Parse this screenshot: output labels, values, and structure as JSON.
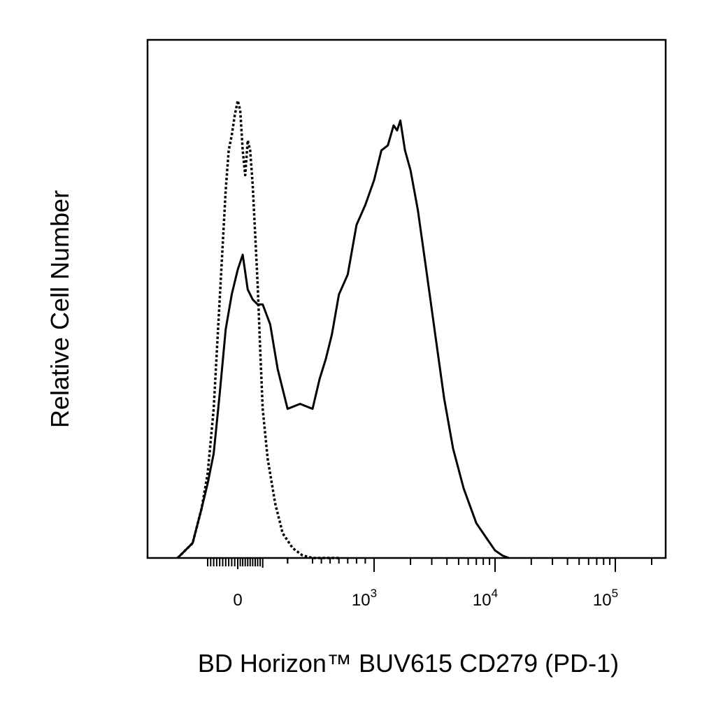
{
  "chart_data": {
    "type": "line",
    "title": "",
    "xlabel": "BD Horizon™ BUV615 CD279 (PD-1)",
    "ylabel": "Relative Cell Number",
    "x_scale": "biexponential (linear near 0, log above)",
    "xlim": [
      -300,
      200000
    ],
    "ylim": [
      0,
      100
    ],
    "grid": false,
    "legend": "none",
    "x_tick_labels": [
      {
        "value": 0,
        "base": "0",
        "exp": ""
      },
      {
        "value": 1000,
        "base": "10",
        "exp": "3"
      },
      {
        "value": 10000,
        "base": "10",
        "exp": "4"
      },
      {
        "value": 100000,
        "base": "10",
        "exp": "5"
      }
    ],
    "colors": {
      "series": "#000000",
      "frame": "#000000"
    },
    "series": [
      {
        "style": "solid",
        "x": [
          -200,
          -150,
          -120,
          -100,
          -80,
          -60,
          -40,
          -20,
          0,
          20,
          40,
          60,
          80,
          100,
          130,
          160,
          200,
          250,
          300,
          380,
          450,
          520,
          600,
          700,
          800,
          900,
          1000,
          1150,
          1300,
          1450,
          1550,
          1650,
          1800,
          2000,
          2300,
          2700,
          3200,
          3800,
          4500,
          5500,
          7000,
          8500,
          10000,
          11500,
          13000
        ],
        "y": [
          0,
          3,
          10,
          15,
          21,
          33,
          46,
          53,
          58,
          61,
          54,
          52,
          51,
          51,
          47,
          38,
          30,
          31,
          30,
          36,
          40,
          45,
          53,
          57,
          67,
          71,
          76,
          82,
          83,
          87,
          86,
          88,
          82,
          78,
          70,
          58,
          45,
          32,
          22,
          14,
          7,
          4,
          1.5,
          0.5,
          0
        ]
      },
      {
        "style": "dotted",
        "x": [
          -200,
          -150,
          -120,
          -100,
          -80,
          -60,
          -40,
          -30,
          -20,
          -10,
          0,
          10,
          20,
          30,
          40,
          50,
          60,
          70,
          80,
          90,
          100,
          120,
          150,
          180,
          220,
          260,
          300,
          380,
          480,
          600
        ],
        "y": [
          0,
          3,
          10,
          17,
          30,
          52,
          74,
          82,
          85,
          89,
          92,
          90,
          82,
          77,
          84,
          82,
          75,
          65,
          55,
          42,
          30,
          20,
          11,
          5,
          2,
          0.5,
          0,
          0,
          0,
          0
        ]
      }
    ]
  }
}
